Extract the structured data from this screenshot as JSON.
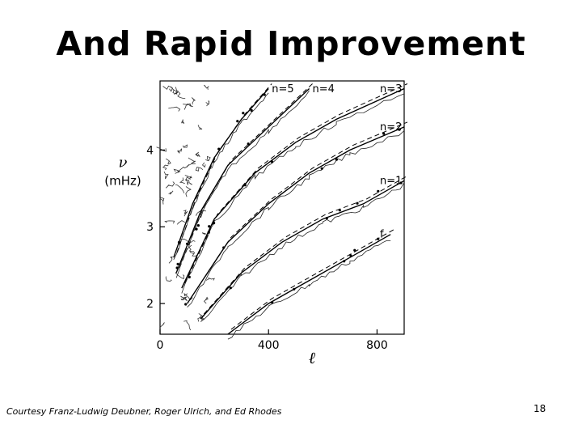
{
  "slide": {
    "title": "And Rapid Improvement",
    "credit": "Courtesy Franz-Ludwig Deubner, Roger Ulrich, and Ed Rhodes",
    "page_number": "18"
  },
  "chart_data": {
    "type": "line",
    "title": "",
    "xlabel": "ℓ",
    "ylabel_symbol": "ν",
    "ylabel_unit": "(mHz)",
    "x_ticks": [
      "0",
      "400",
      "800"
    ],
    "y_ticks": [
      "2",
      "3",
      "4"
    ],
    "xlim": [
      0,
      900
    ],
    "ylim": [
      1.6,
      4.9
    ],
    "series": [
      {
        "name": "f",
        "x": [
          250,
          400,
          550,
          700,
          850
        ],
        "y": [
          1.6,
          2.0,
          2.3,
          2.6,
          2.9
        ]
      },
      {
        "name": "n=1",
        "x": [
          150,
          300,
          450,
          600,
          750,
          900
        ],
        "y": [
          1.8,
          2.4,
          2.8,
          3.1,
          3.3,
          3.6
        ]
      },
      {
        "name": "n=2",
        "x": [
          100,
          250,
          400,
          550,
          700,
          900
        ],
        "y": [
          2.0,
          2.8,
          3.3,
          3.7,
          4.0,
          4.3
        ]
      },
      {
        "name": "n=3",
        "x": [
          80,
          200,
          350,
          500,
          650,
          900
        ],
        "y": [
          2.2,
          3.1,
          3.7,
          4.1,
          4.4,
          4.8
        ]
      },
      {
        "name": "n=4",
        "x": [
          60,
          150,
          250,
          400,
          550
        ],
        "y": [
          2.4,
          3.2,
          3.8,
          4.3,
          4.8
        ]
      },
      {
        "name": "n=5",
        "x": [
          50,
          120,
          200,
          300,
          400
        ],
        "y": [
          2.6,
          3.3,
          3.9,
          4.4,
          4.8
        ]
      }
    ]
  }
}
